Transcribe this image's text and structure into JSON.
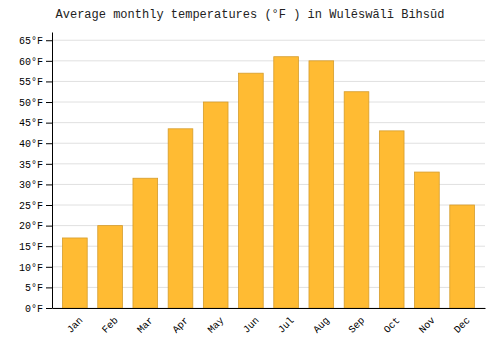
{
  "chart_data": {
    "type": "bar",
    "title": "Average monthly temperatures (°F ) in Wulēswālī Bihsūd",
    "categories": [
      "Jan",
      "Feb",
      "Mar",
      "Apr",
      "May",
      "Jun",
      "Jul",
      "Aug",
      "Sep",
      "Oct",
      "Nov",
      "Dec"
    ],
    "values": [
      17,
      20,
      31.5,
      43.5,
      50,
      57,
      61,
      60,
      52.5,
      43,
      33,
      25
    ],
    "color": "#FFBB33",
    "ylim": [
      0,
      67
    ],
    "yticks": [
      {
        "value": 0,
        "label": "0°F"
      },
      {
        "value": 5,
        "label": "5°F"
      },
      {
        "value": 10,
        "label": "10°F"
      },
      {
        "value": 15,
        "label": "15°F"
      },
      {
        "value": 20,
        "label": "20°F"
      },
      {
        "value": 25,
        "label": "25°F"
      },
      {
        "value": 30,
        "label": "30°F"
      },
      {
        "value": 35,
        "label": "35°F"
      },
      {
        "value": 40,
        "label": "40°F"
      },
      {
        "value": 45,
        "label": "45°F"
      },
      {
        "value": 50,
        "label": "50°F"
      },
      {
        "value": 55,
        "label": "55°F"
      },
      {
        "value": 60,
        "label": "60°F"
      },
      {
        "value": 65,
        "label": "65°F"
      }
    ],
    "grid": true
  }
}
